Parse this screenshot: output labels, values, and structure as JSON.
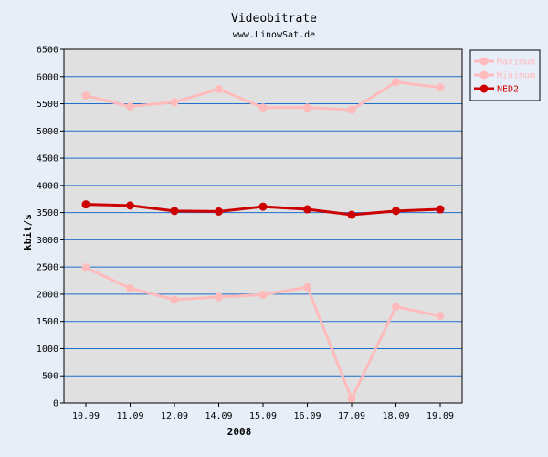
{
  "chart_data": {
    "type": "line",
    "title": "Videobitrate",
    "subtitle": "www.LinowSat.de",
    "xlabel": "2008",
    "ylabel": "kbit/s",
    "categories": [
      "10.09",
      "11.09",
      "12.09",
      "14.09",
      "15.09",
      "16.09",
      "17.09",
      "18.09",
      "19.09"
    ],
    "ylim": [
      0,
      6500
    ],
    "yticks": [
      0,
      500,
      1000,
      1500,
      2000,
      2500,
      3000,
      3500,
      4000,
      4500,
      5000,
      5500,
      6000,
      6500
    ],
    "grid": true,
    "legend_position": "top-right",
    "series": [
      {
        "name": "Maximum",
        "color": "#ffbbbb",
        "values": [
          5650,
          5450,
          5530,
          5770,
          5430,
          5430,
          5390,
          5900,
          5800
        ]
      },
      {
        "name": "Minimum",
        "color": "#ffbbbb",
        "values": [
          2490,
          2110,
          1900,
          1950,
          1990,
          2130,
          80,
          1770,
          1600
        ]
      },
      {
        "name": "NED2",
        "color": "#cc0000",
        "values": [
          3650,
          3630,
          3530,
          3520,
          3610,
          3560,
          3460,
          3530,
          3560
        ]
      }
    ]
  }
}
